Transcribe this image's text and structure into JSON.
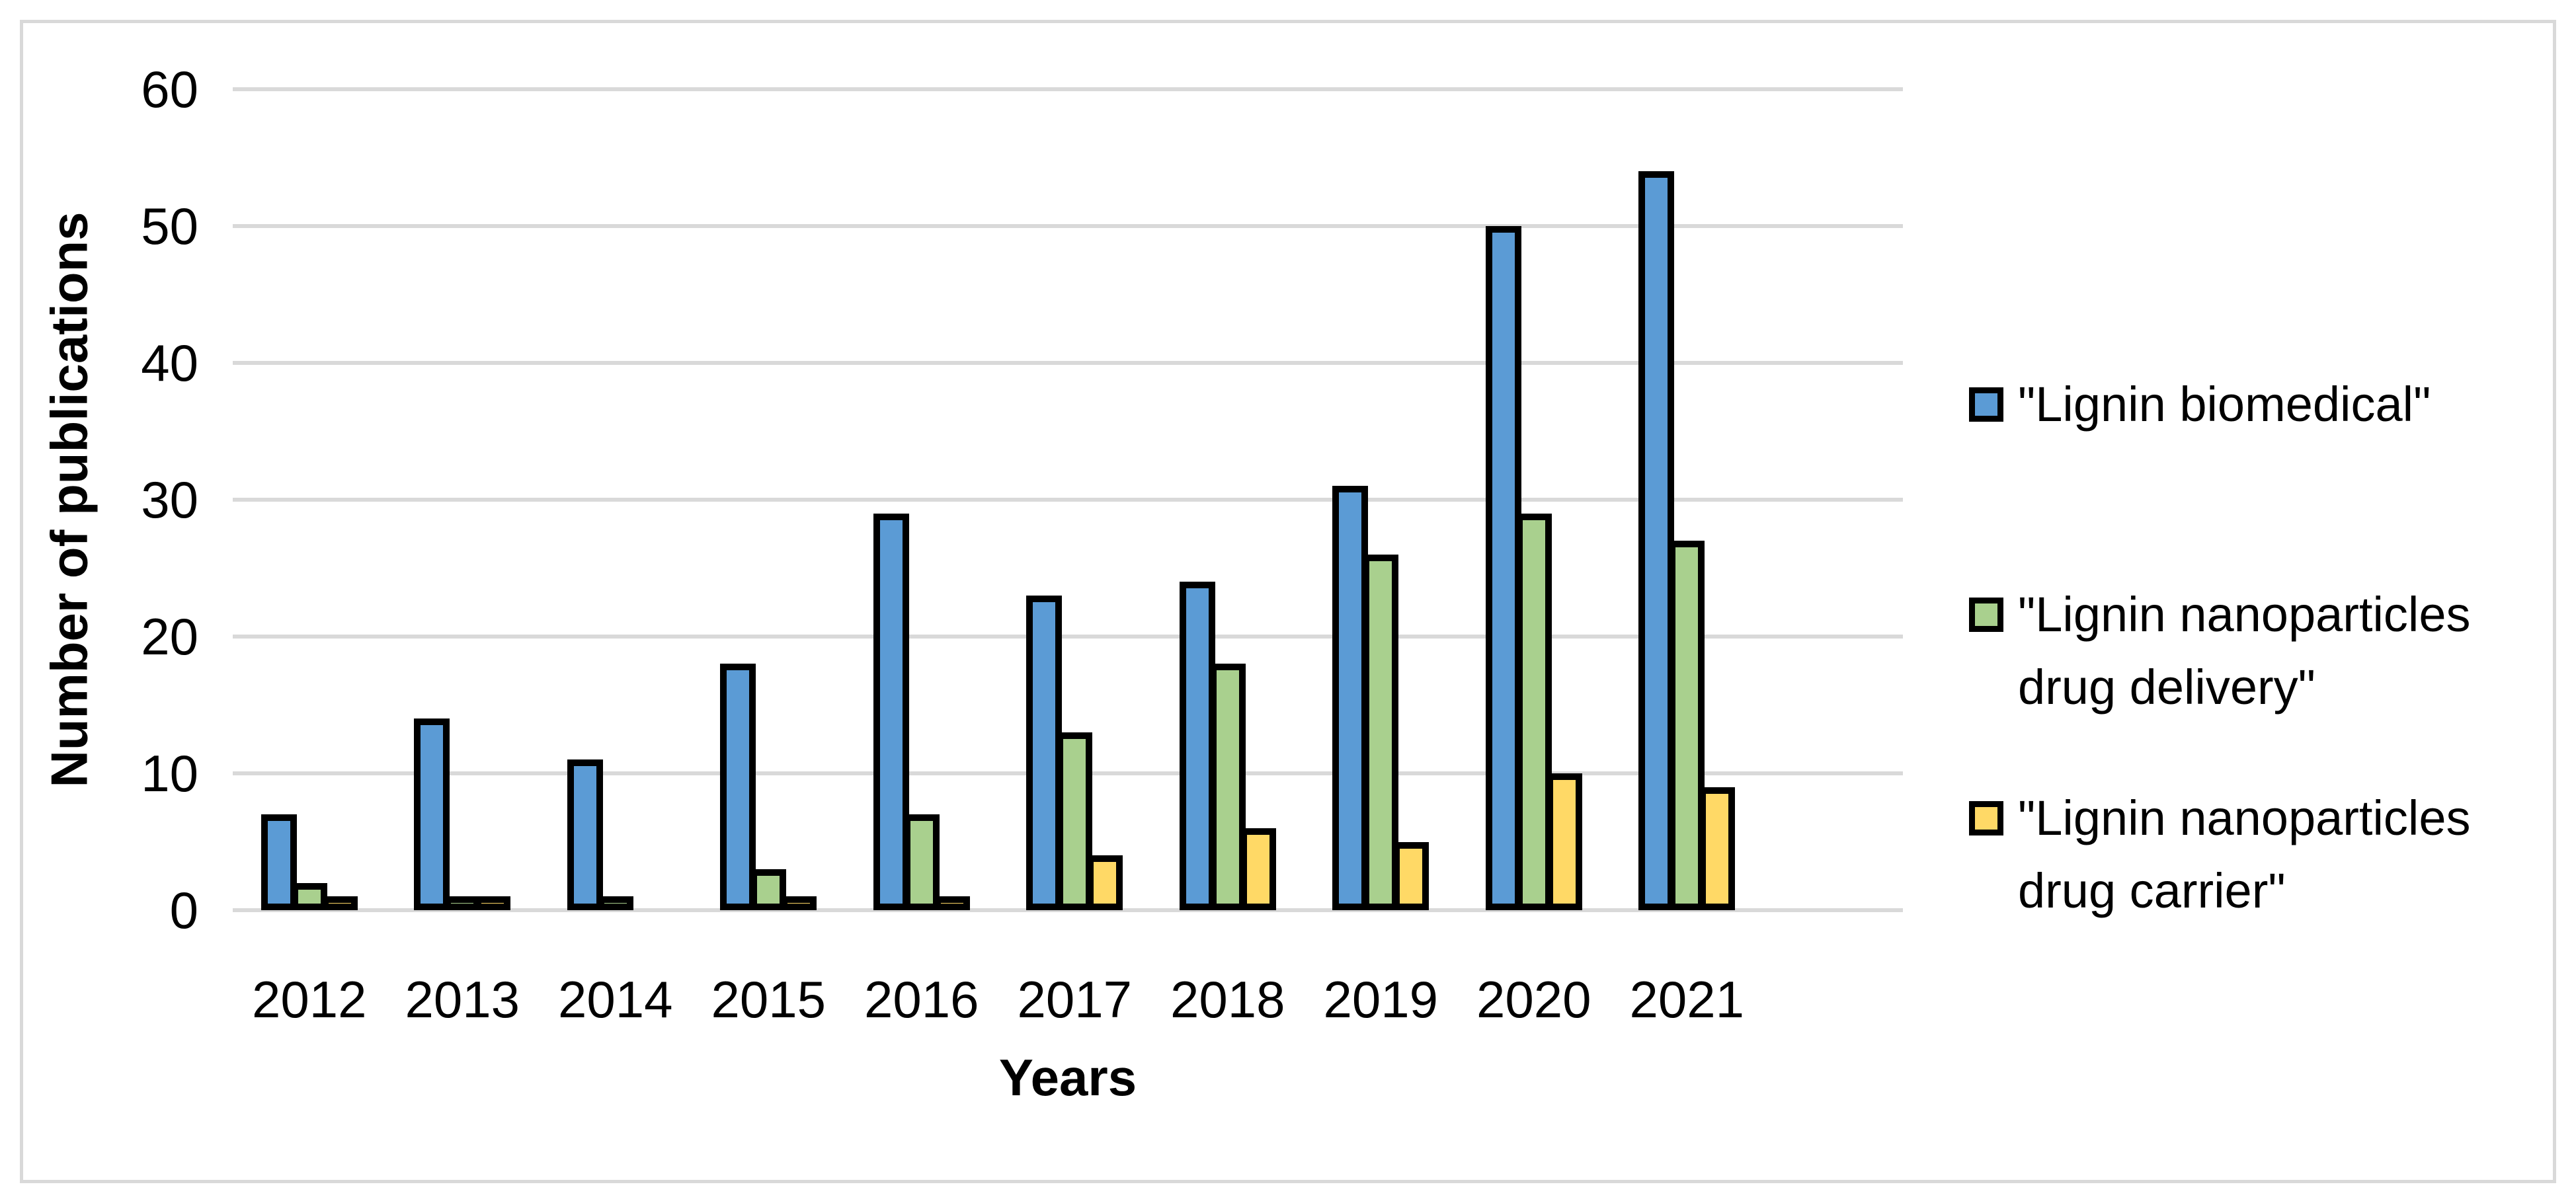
{
  "chart_data": {
    "type": "bar",
    "title": "",
    "categories": [
      "2012",
      "2013",
      "2014",
      "2015",
      "2016",
      "2017",
      "2018",
      "2019",
      "2020",
      "2021"
    ],
    "series": [
      {
        "name": "\"Lignin biomedical\"",
        "color": "#5B9BD5",
        "values": [
          7,
          14,
          11,
          18,
          29,
          23,
          24,
          31,
          50,
          54
        ]
      },
      {
        "name": "\"Lignin nanoparticles drug delivery\"",
        "color": "#A9D08E",
        "values": [
          2,
          1,
          1,
          3,
          7,
          13,
          18,
          26,
          29,
          27
        ]
      },
      {
        "name": "\"Lignin nanoparticles drug carrier\"",
        "color": "#FFD966",
        "values": [
          1,
          1,
          0,
          1,
          1,
          4,
          6,
          5,
          10,
          9
        ]
      }
    ],
    "xlabel": "Years",
    "ylabel": "Number of publications",
    "ylim": [
      0,
      60
    ],
    "ytick_step": 10,
    "yticks": [
      "0",
      "10",
      "20",
      "30",
      "40",
      "50",
      "60"
    ],
    "grid": true,
    "legend_position": "right",
    "legend": [
      {
        "lines": [
          "\"Lignin biomedical\""
        ],
        "color": "#5B9BD5",
        "top": 557
      },
      {
        "lines": [
          "\"Lignin nanoparticles",
          "drug delivery\""
        ],
        "color": "#A9D08E",
        "top": 875
      },
      {
        "lines": [
          "\"Lignin nanoparticles",
          "drug carrier\""
        ],
        "color": "#FFD966",
        "top": 1183
      }
    ],
    "colors": {
      "bar_outline": "#000000",
      "gridline": "#D9D9D9",
      "figure_border": "#D9D9D9",
      "background": "#FFFFFF",
      "text": "#000000"
    }
  }
}
